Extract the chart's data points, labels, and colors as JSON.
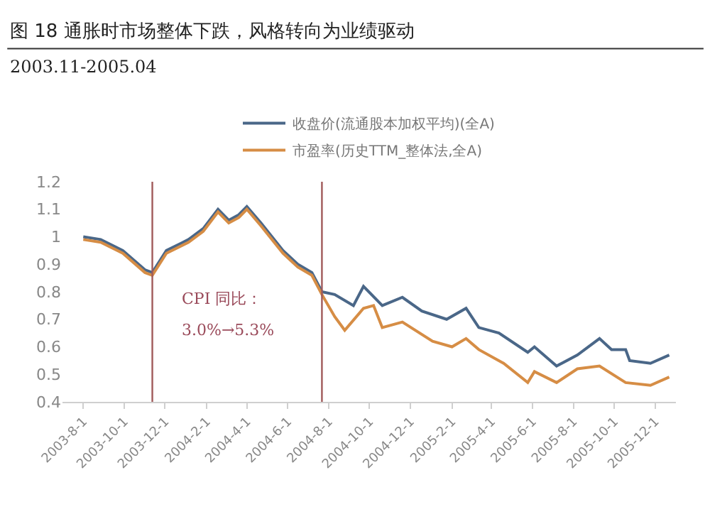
{
  "chart_data": {
    "type": "line",
    "title": "图 18 通胀时市场整体下跌，风格转向为业绩驱动",
    "subtitle": "2003.11-2005.04",
    "annotations": [
      "CPI 同比：",
      "3.0%→5.3%"
    ],
    "series": [
      {
        "name": "收盘价(流通股本加权平均)(全A)",
        "color": "#4a6788",
        "x": [
          "2003-08-01",
          "2003-08-27",
          "2003-09-29",
          "2003-11-01",
          "2003-11-12",
          "2003-12-03",
          "2004-01-05",
          "2004-01-27",
          "2004-02-18",
          "2004-03-05",
          "2004-03-20",
          "2004-04-01",
          "2004-04-22",
          "2004-05-25",
          "2004-06-16",
          "2004-07-07",
          "2004-07-22",
          "2004-08-10",
          "2004-09-07",
          "2004-09-22",
          "2004-10-20",
          "2004-11-19",
          "2004-12-18",
          "2005-01-24",
          "2005-02-22",
          "2005-03-13",
          "2005-04-12",
          "2005-05-25",
          "2005-06-04",
          "2005-07-07",
          "2005-08-07",
          "2005-09-09",
          "2005-09-27",
          "2005-10-18",
          "2005-10-24",
          "2005-11-24",
          "2005-12-22"
        ],
        "values": [
          1.0,
          0.99,
          0.95,
          0.88,
          0.87,
          0.95,
          0.99,
          1.03,
          1.1,
          1.06,
          1.08,
          1.11,
          1.05,
          0.95,
          0.9,
          0.87,
          0.8,
          0.79,
          0.75,
          0.82,
          0.75,
          0.78,
          0.73,
          0.7,
          0.74,
          0.67,
          0.65,
          0.58,
          0.6,
          0.53,
          0.57,
          0.63,
          0.59,
          0.59,
          0.55,
          0.54,
          0.57
        ]
      },
      {
        "name": "市盈率(历史TTM_整体法,全A)",
        "color": "#d68d45",
        "x": [
          "2003-08-01",
          "2003-08-27",
          "2003-09-29",
          "2003-11-01",
          "2003-11-12",
          "2003-12-03",
          "2004-01-05",
          "2004-01-27",
          "2004-02-18",
          "2004-03-05",
          "2004-03-20",
          "2004-04-01",
          "2004-04-22",
          "2004-05-25",
          "2004-06-16",
          "2004-07-07",
          "2004-07-22",
          "2004-08-10",
          "2004-08-25",
          "2004-09-22",
          "2004-10-07",
          "2004-10-20",
          "2004-11-19",
          "2005-01-03",
          "2005-02-01",
          "2005-02-22",
          "2005-03-13",
          "2005-04-19",
          "2005-05-25",
          "2005-06-04",
          "2005-07-07",
          "2005-08-07",
          "2005-09-09",
          "2005-10-18",
          "2005-11-24",
          "2005-12-22"
        ],
        "values": [
          0.99,
          0.98,
          0.94,
          0.87,
          0.86,
          0.94,
          0.98,
          1.02,
          1.09,
          1.05,
          1.07,
          1.1,
          1.04,
          0.94,
          0.89,
          0.86,
          0.79,
          0.71,
          0.66,
          0.74,
          0.75,
          0.67,
          0.69,
          0.62,
          0.6,
          0.63,
          0.59,
          0.54,
          0.47,
          0.51,
          0.47,
          0.52,
          0.53,
          0.47,
          0.46,
          0.49
        ]
      }
    ],
    "xlim": [
      "2003-07-01",
      "2006-01-01"
    ],
    "xticks": [
      {
        "value": "2003-08-01",
        "label": "2003-8-1"
      },
      {
        "value": "2003-10-01",
        "label": "2003-10-1"
      },
      {
        "value": "2003-12-01",
        "label": "2003-12-1"
      },
      {
        "value": "2004-02-01",
        "label": "2004-2-1"
      },
      {
        "value": "2004-04-01",
        "label": "2004-4-1"
      },
      {
        "value": "2004-06-01",
        "label": "2004-6-1"
      },
      {
        "value": "2004-08-01",
        "label": "2004-8-1"
      },
      {
        "value": "2004-10-01",
        "label": "2004-10-1"
      },
      {
        "value": "2004-12-01",
        "label": "2004-12-1"
      },
      {
        "value": "2005-02-01",
        "label": "2005-2-1"
      },
      {
        "value": "2005-04-01",
        "label": "2005-4-1"
      },
      {
        "value": "2005-06-01",
        "label": "2005-6-1"
      },
      {
        "value": "2005-08-01",
        "label": "2005-8-1"
      },
      {
        "value": "2005-10-01",
        "label": "2005-10-1"
      },
      {
        "value": "2005-12-01",
        "label": "2005-12-1"
      }
    ],
    "ylim": [
      0.4,
      1.2
    ],
    "yticks": [
      0.4,
      0.5,
      0.6,
      0.7,
      0.8,
      0.9,
      1,
      1.1,
      1.2
    ],
    "ref_lines": [
      {
        "axis": "x",
        "value": "2003-11-12",
        "color": "#a05a5a"
      },
      {
        "axis": "x",
        "value": "2004-07-22",
        "color": "#a05a5a"
      }
    ],
    "legend": "top",
    "marker": "none",
    "line_style": "solid"
  }
}
